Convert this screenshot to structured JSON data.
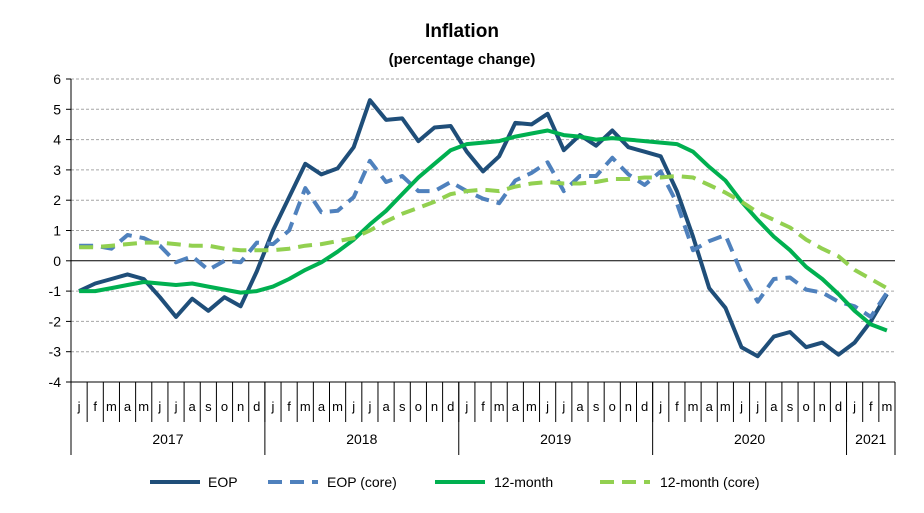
{
  "chart_data": {
    "type": "line",
    "title": "Inflation",
    "subtitle": "(percentage change)",
    "ylim": [
      -4,
      6
    ],
    "yticks": [
      "6",
      "5",
      "4",
      "3",
      "2",
      "1",
      "0",
      "-1",
      "-2",
      "-3",
      "-4"
    ],
    "grid": true,
    "legend_position": "bottom",
    "month_labels": [
      "j",
      "f",
      "m",
      "a",
      "m",
      "j",
      "j",
      "a",
      "s",
      "o",
      "n",
      "d",
      "j",
      "f",
      "m",
      "a",
      "m",
      "j",
      "j",
      "a",
      "s",
      "o",
      "n",
      "d",
      "j",
      "f",
      "m",
      "a",
      "m",
      "j",
      "j",
      "a",
      "s",
      "o",
      "n",
      "d",
      "j",
      "f",
      "m",
      "a",
      "m",
      "j",
      "j",
      "a",
      "s",
      "o",
      "n",
      "d",
      "j",
      "f",
      "m"
    ],
    "year_labels": [
      {
        "label": "2017",
        "months": 12
      },
      {
        "label": "2018",
        "months": 12
      },
      {
        "label": "2019",
        "months": 12
      },
      {
        "label": "2020",
        "months": 12
      },
      {
        "label": "2021",
        "months": 3
      }
    ],
    "series": [
      {
        "name": "EOP",
        "color": "#1F4E79",
        "dash": "solid",
        "values": [
          -1.0,
          -0.75,
          -0.6,
          -0.45,
          -0.6,
          -1.2,
          -1.85,
          -1.25,
          -1.65,
          -1.2,
          -1.5,
          -0.35,
          1.0,
          2.1,
          3.2,
          2.85,
          3.05,
          3.75,
          5.3,
          4.65,
          4.7,
          3.95,
          4.4,
          4.45,
          3.6,
          2.95,
          3.45,
          4.55,
          4.5,
          4.85,
          3.65,
          4.15,
          3.8,
          4.3,
          3.75,
          3.6,
          3.45,
          2.3,
          0.8,
          -0.9,
          -1.55,
          -2.85,
          -3.15,
          -2.5,
          -2.35,
          -2.85,
          -2.7,
          -3.1,
          -2.7,
          -2.0,
          -1.1
        ]
      },
      {
        "name": "EOP (core)",
        "color": "#4F81BD",
        "dash": "dash",
        "values": [
          0.5,
          0.5,
          0.4,
          0.85,
          0.75,
          0.5,
          -0.05,
          0.15,
          -0.3,
          0.0,
          -0.05,
          0.6,
          0.55,
          1.0,
          2.4,
          1.6,
          1.65,
          2.1,
          3.3,
          2.6,
          2.8,
          2.3,
          2.3,
          2.6,
          2.3,
          2.05,
          1.9,
          2.65,
          2.9,
          3.25,
          2.3,
          2.8,
          2.8,
          3.4,
          2.85,
          2.5,
          2.95,
          1.9,
          0.35,
          0.65,
          0.85,
          -0.4,
          -1.35,
          -0.6,
          -0.55,
          -0.95,
          -1.05,
          -1.35,
          -1.5,
          -1.85,
          -1.05
        ]
      },
      {
        "name": "12-month",
        "color": "#00B050",
        "dash": "solid",
        "values": [
          -1.0,
          -1.0,
          -0.9,
          -0.8,
          -0.7,
          -0.75,
          -0.8,
          -0.75,
          -0.85,
          -0.95,
          -1.05,
          -1.0,
          -0.85,
          -0.6,
          -0.3,
          -0.05,
          0.3,
          0.7,
          1.2,
          1.65,
          2.2,
          2.75,
          3.2,
          3.65,
          3.85,
          3.9,
          3.95,
          4.1,
          4.2,
          4.3,
          4.15,
          4.1,
          4.0,
          4.05,
          4.0,
          3.95,
          3.9,
          3.85,
          3.6,
          3.1,
          2.65,
          1.95,
          1.35,
          0.8,
          0.35,
          -0.2,
          -0.6,
          -1.1,
          -1.65,
          -2.1,
          -2.3
        ]
      },
      {
        "name": "12-month (core)",
        "color": "#92D050",
        "dash": "dash",
        "values": [
          0.45,
          0.45,
          0.5,
          0.55,
          0.6,
          0.6,
          0.55,
          0.5,
          0.5,
          0.4,
          0.35,
          0.35,
          0.35,
          0.4,
          0.5,
          0.55,
          0.65,
          0.75,
          1.0,
          1.3,
          1.55,
          1.75,
          1.95,
          2.2,
          2.3,
          2.35,
          2.3,
          2.45,
          2.55,
          2.6,
          2.55,
          2.55,
          2.6,
          2.7,
          2.7,
          2.75,
          2.75,
          2.8,
          2.75,
          2.5,
          2.25,
          1.95,
          1.6,
          1.35,
          1.1,
          0.7,
          0.4,
          0.15,
          -0.3,
          -0.6,
          -0.9
        ]
      }
    ]
  }
}
